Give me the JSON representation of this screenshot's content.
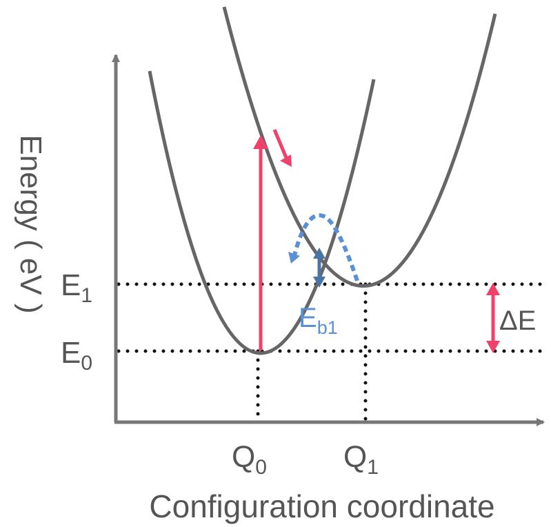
{
  "axes": {
    "y_label": "Energy ( eV )",
    "x_label": "Configuration coordinate"
  },
  "levels": {
    "e0": {
      "letter": "E",
      "sub": "0"
    },
    "e1": {
      "letter": "E",
      "sub": "1"
    }
  },
  "coordinates": {
    "q0": {
      "letter": "Q",
      "sub": "0"
    },
    "q1": {
      "letter": "Q",
      "sub": "1"
    }
  },
  "barrier": {
    "letter": "E",
    "sub": "b1"
  },
  "delta": {
    "label": "ΔE"
  },
  "colors": {
    "curve": "#666666",
    "axis": "#777777",
    "excitation_arrow": "#f0416a",
    "barrier_arrow": "#4a74a8",
    "dotted_path": "#5b8fd6",
    "guide_dots": "#111111"
  }
}
